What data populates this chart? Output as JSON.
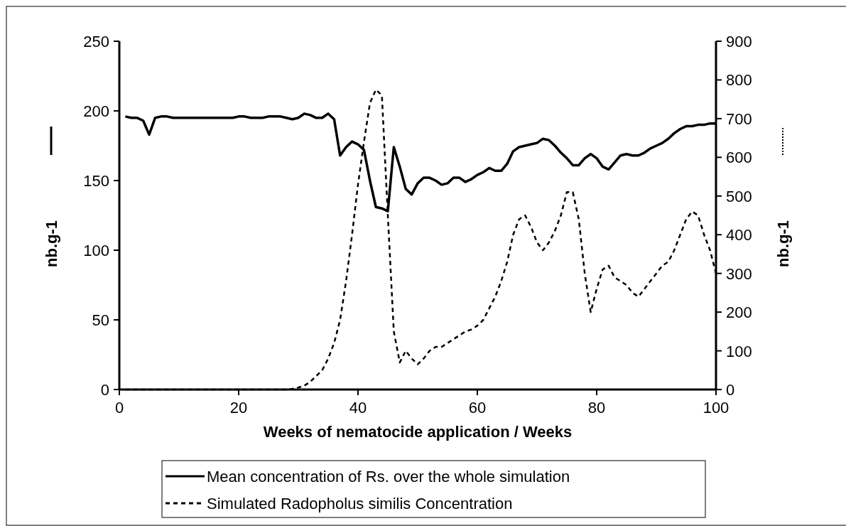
{
  "chart_data": {
    "type": "line",
    "xlabel": "Weeks of nematocide application / Weeks",
    "ylabel": "nb.g-1",
    "y2label": "nb.g-1",
    "x": [
      1,
      2,
      3,
      4,
      5,
      6,
      7,
      8,
      9,
      10,
      11,
      12,
      13,
      14,
      15,
      16,
      17,
      18,
      19,
      20,
      21,
      22,
      23,
      24,
      25,
      26,
      27,
      28,
      29,
      30,
      31,
      32,
      33,
      34,
      35,
      36,
      37,
      38,
      39,
      40,
      41,
      42,
      43,
      44,
      45,
      46,
      47,
      48,
      49,
      50,
      51,
      52,
      53,
      54,
      55,
      56,
      57,
      58,
      59,
      60,
      61,
      62,
      63,
      64,
      65,
      66,
      67,
      68,
      69,
      70,
      71,
      72,
      73,
      74,
      75,
      76,
      77,
      78,
      79,
      80,
      81,
      82,
      83,
      84,
      85,
      86,
      87,
      88,
      89,
      90,
      91,
      92,
      93,
      94,
      95,
      96,
      97,
      98,
      99,
      100
    ],
    "xlim": [
      0,
      100
    ],
    "xticks": [
      0,
      20,
      40,
      60,
      80,
      100
    ],
    "ylim": [
      0,
      250
    ],
    "yticks": [
      0,
      50,
      100,
      150,
      200,
      250
    ],
    "y2lim": [
      0,
      900
    ],
    "y2ticks": [
      0,
      100,
      200,
      300,
      400,
      500,
      600,
      700,
      800,
      900
    ],
    "grid": false,
    "legend": "bottom",
    "marker": "none",
    "series": [
      {
        "name": "Mean concentration of Rs. over the whole simulation",
        "color": "#000000",
        "line_style": "solid",
        "values": [
          196,
          195,
          195,
          193,
          183,
          195,
          196,
          196,
          195,
          195,
          195,
          195,
          195,
          195,
          195,
          195,
          195,
          195,
          195,
          196,
          196,
          195,
          195,
          195,
          196,
          196,
          196,
          195,
          194,
          195,
          198,
          197,
          195,
          195,
          198,
          194,
          168,
          174,
          178,
          176,
          172,
          150,
          131,
          130,
          128,
          174,
          160,
          144,
          140,
          148,
          152,
          152,
          150,
          147,
          148,
          152,
          152,
          149,
          151,
          154,
          156,
          159,
          157,
          157,
          162,
          171,
          174,
          175,
          176,
          177,
          180,
          179,
          175,
          170,
          166,
          161,
          161,
          166,
          169,
          166,
          160,
          158,
          163,
          168,
          169,
          168,
          168,
          170,
          173,
          175,
          177,
          180,
          184,
          187,
          189,
          189,
          190,
          190,
          191,
          191
        ]
      },
      {
        "name": "Simulated Radopholus similis Concentration",
        "color": "#000000",
        "line_style": "dashed",
        "axis": "y2",
        "values": [
          0,
          0,
          0,
          0,
          0,
          0,
          0,
          0,
          0,
          0,
          0,
          0,
          0,
          0,
          0,
          0,
          0,
          0,
          0,
          0,
          0,
          0,
          0,
          0,
          0,
          0,
          0,
          0,
          2,
          5,
          10,
          20,
          35,
          50,
          80,
          120,
          180,
          280,
          400,
          530,
          640,
          740,
          775,
          760,
          450,
          150,
          70,
          100,
          80,
          65,
          80,
          100,
          110,
          110,
          120,
          130,
          140,
          150,
          155,
          165,
          180,
          210,
          240,
          280,
          330,
          400,
          440,
          450,
          420,
          380,
          360,
          380,
          410,
          450,
          510,
          510,
          440,
          300,
          200,
          260,
          310,
          320,
          290,
          280,
          270,
          250,
          240,
          260,
          280,
          300,
          320,
          330,
          360,
          400,
          440,
          460,
          450,
          400,
          360,
          300
        ]
      }
    ]
  }
}
